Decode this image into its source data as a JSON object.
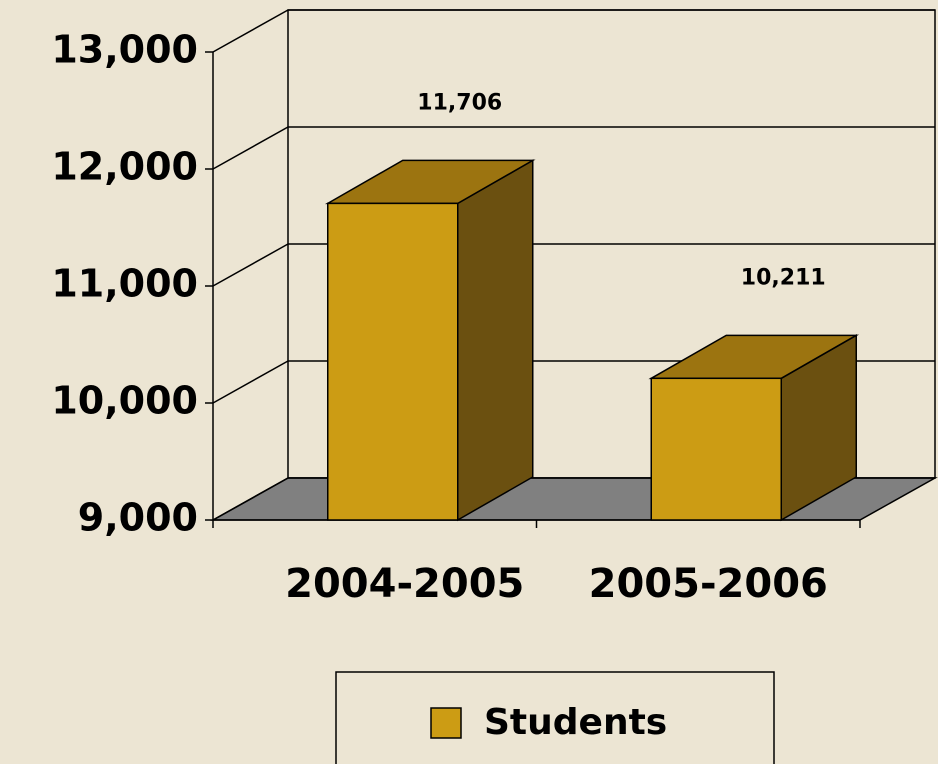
{
  "chart_data": {
    "type": "bar3d",
    "categories": [
      "2004-2005",
      "2005-2006"
    ],
    "series": [
      {
        "name": "Students",
        "color": "#cc9c14",
        "values": [
          11706,
          10211
        ],
        "value_labels": [
          "11,706",
          "10,211"
        ]
      }
    ],
    "ylim": [
      9000,
      13000
    ],
    "yticks": [
      {
        "value": 9000,
        "label": "9,000"
      },
      {
        "value": 10000,
        "label": "10,000"
      },
      {
        "value": 11000,
        "label": "11,000"
      },
      {
        "value": 12000,
        "label": "12,000"
      },
      {
        "value": 13000,
        "label": "13,000"
      }
    ],
    "grid": true,
    "legend": "bottom"
  }
}
